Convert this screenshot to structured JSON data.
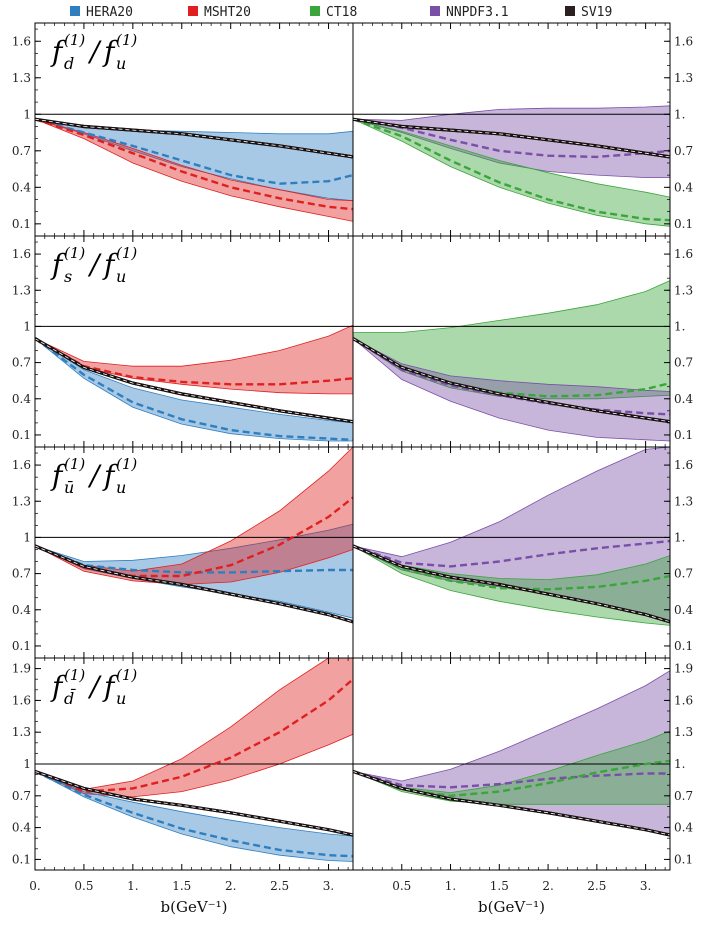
{
  "legend": [
    {
      "name": "HERA20",
      "color": "#2f7fc0"
    },
    {
      "name": "MSHT20",
      "color": "#e02020"
    },
    {
      "name": "CT18",
      "color": "#3aa53a"
    },
    {
      "name": "NNPDF3.1",
      "color": "#7a4fa8"
    },
    {
      "name": "SV19",
      "color": "#2a2020"
    }
  ],
  "x_axis_label": "b(GeV⁻¹)",
  "x_tick_labels": [
    "0.",
    "0.5",
    "1.",
    "1.5",
    "2.",
    "2.5",
    "3."
  ],
  "row_titles": [
    {
      "main": "f",
      "sub": "d",
      "num_sup": "(1)",
      "den": "f",
      "den_sub": "u",
      "den_sup": "(1)"
    },
    {
      "main": "f",
      "sub": "s",
      "num_sup": "(1)",
      "den": "f",
      "den_sub": "u",
      "den_sup": "(1)"
    },
    {
      "main": "f",
      "sub": "ū",
      "num_sup": "(1)",
      "den": "f",
      "den_sub": "u",
      "den_sup": "(1)"
    },
    {
      "main": "f",
      "sub": "d̄",
      "num_sup": "(1)",
      "den": "f",
      "den_sub": "u",
      "den_sup": "(1)"
    }
  ],
  "left_tick_labels": [
    [
      "0.1",
      "0.4",
      "0.7",
      "1",
      "1.3",
      "1.6"
    ],
    [
      "0.1",
      "0.4",
      "0.7",
      "1",
      "1.3",
      "1.6"
    ],
    [
      "0.1",
      "0.4",
      "0.7",
      "1",
      "1.3",
      "1.6"
    ],
    [
      "0.1",
      "0.4",
      "0.7",
      "1",
      "1.3",
      "1.6",
      "1.9"
    ]
  ],
  "right_tick_labels": [
    [
      "0.1",
      "0.4",
      "0.7",
      "1.",
      "1.3",
      "1.6"
    ],
    [
      "0.1",
      "0.4",
      "0.7",
      "1.",
      "1.3",
      "1.6"
    ],
    [
      "0.1",
      "0.4",
      "0.7",
      "1.",
      "1.3",
      "1.6"
    ],
    [
      "0.1",
      "0.4",
      "0.7",
      "1.",
      "1.3",
      "1.6",
      "1.9"
    ]
  ],
  "chart_data": [
    {
      "type": "area",
      "row": 0,
      "col": 0,
      "xlim": [
        0,
        3.25
      ],
      "ylim": [
        0,
        1.75
      ],
      "ref_line": 1,
      "x": [
        0,
        0.5,
        1.0,
        1.5,
        2.0,
        2.5,
        3.0,
        3.25
      ],
      "series": [
        {
          "name": "HERA20",
          "color": "#2f7fc0",
          "low": [
            0.96,
            0.84,
            0.7,
            0.57,
            0.47,
            0.38,
            0.31,
            0.29
          ],
          "mid": [
            0.96,
            0.85,
            0.74,
            0.62,
            0.5,
            0.43,
            0.45,
            0.5
          ],
          "high": [
            0.96,
            0.89,
            0.87,
            0.86,
            0.85,
            0.84,
            0.84,
            0.86
          ]
        },
        {
          "name": "MSHT20",
          "color": "#e02020",
          "low": [
            0.96,
            0.8,
            0.6,
            0.45,
            0.33,
            0.24,
            0.16,
            0.12
          ],
          "mid": [
            0.96,
            0.83,
            0.68,
            0.53,
            0.4,
            0.31,
            0.24,
            0.22
          ],
          "high": [
            0.96,
            0.85,
            0.72,
            0.58,
            0.46,
            0.38,
            0.3,
            0.29
          ]
        },
        {
          "name": "SV19",
          "color": "#2a2020",
          "low": [
            0.96,
            0.89,
            0.86,
            0.83,
            0.78,
            0.73,
            0.67,
            0.64
          ],
          "mid": [
            0.96,
            0.9,
            0.87,
            0.84,
            0.79,
            0.74,
            0.68,
            0.65
          ],
          "high": [
            0.96,
            0.91,
            0.88,
            0.85,
            0.8,
            0.75,
            0.69,
            0.66
          ]
        }
      ]
    },
    {
      "type": "area",
      "row": 0,
      "col": 1,
      "xlim": [
        0,
        3.25
      ],
      "ylim": [
        0,
        1.75
      ],
      "ref_line": 1,
      "x": [
        0,
        0.5,
        1.0,
        1.5,
        2.0,
        2.5,
        3.0,
        3.25
      ],
      "series": [
        {
          "name": "NNPDF3.1",
          "color": "#7a4fa8",
          "low": [
            0.96,
            0.85,
            0.72,
            0.6,
            0.53,
            0.5,
            0.48,
            0.48
          ],
          "mid": [
            0.96,
            0.89,
            0.79,
            0.7,
            0.66,
            0.65,
            0.68,
            0.7
          ],
          "high": [
            0.96,
            0.95,
            1.0,
            1.04,
            1.05,
            1.05,
            1.06,
            1.07
          ]
        },
        {
          "name": "CT18",
          "color": "#3aa53a",
          "low": [
            0.96,
            0.78,
            0.57,
            0.4,
            0.27,
            0.17,
            0.1,
            0.08
          ],
          "mid": [
            0.96,
            0.82,
            0.62,
            0.44,
            0.3,
            0.2,
            0.14,
            0.13
          ],
          "high": [
            0.96,
            0.86,
            0.74,
            0.62,
            0.52,
            0.43,
            0.36,
            0.32
          ]
        },
        {
          "name": "SV19",
          "color": "#2a2020",
          "low": [
            0.96,
            0.89,
            0.86,
            0.83,
            0.78,
            0.73,
            0.67,
            0.64
          ],
          "mid": [
            0.96,
            0.9,
            0.87,
            0.84,
            0.79,
            0.74,
            0.68,
            0.65
          ],
          "high": [
            0.96,
            0.91,
            0.88,
            0.85,
            0.8,
            0.75,
            0.69,
            0.66
          ]
        }
      ]
    },
    {
      "type": "area",
      "row": 1,
      "col": 0,
      "xlim": [
        0,
        3.25
      ],
      "ylim": [
        0,
        1.75
      ],
      "ref_line": 1,
      "x": [
        0,
        0.5,
        1.0,
        1.5,
        2.0,
        2.5,
        3.0,
        3.25
      ],
      "series": [
        {
          "name": "MSHT20",
          "color": "#e02020",
          "low": [
            0.9,
            0.66,
            0.57,
            0.52,
            0.48,
            0.45,
            0.44,
            0.44
          ],
          "mid": [
            0.9,
            0.67,
            0.58,
            0.54,
            0.52,
            0.52,
            0.55,
            0.57
          ],
          "high": [
            0.9,
            0.71,
            0.67,
            0.67,
            0.72,
            0.8,
            0.92,
            1.01
          ]
        },
        {
          "name": "HERA20",
          "color": "#2f7fc0",
          "low": [
            0.9,
            0.57,
            0.33,
            0.19,
            0.11,
            0.07,
            0.05,
            0.05
          ],
          "mid": [
            0.9,
            0.6,
            0.37,
            0.23,
            0.14,
            0.09,
            0.07,
            0.06
          ],
          "high": [
            0.9,
            0.64,
            0.49,
            0.39,
            0.33,
            0.27,
            0.22,
            0.2
          ]
        },
        {
          "name": "SV19",
          "color": "#2a2020",
          "low": [
            0.9,
            0.65,
            0.52,
            0.43,
            0.36,
            0.29,
            0.23,
            0.2
          ],
          "mid": [
            0.9,
            0.66,
            0.53,
            0.44,
            0.37,
            0.3,
            0.24,
            0.21
          ],
          "high": [
            0.9,
            0.67,
            0.54,
            0.45,
            0.38,
            0.31,
            0.25,
            0.22
          ]
        }
      ]
    },
    {
      "type": "area",
      "row": 1,
      "col": 1,
      "xlim": [
        0,
        3.25
      ],
      "ylim": [
        0,
        1.75
      ],
      "ref_line": 1,
      "x": [
        0,
        0.5,
        1.0,
        1.5,
        2.0,
        2.5,
        3.0,
        3.25
      ],
      "series": [
        {
          "name": "CT18",
          "color": "#3aa53a",
          "low": [
            0.9,
            0.63,
            0.49,
            0.42,
            0.4,
            0.4,
            0.42,
            0.43
          ],
          "mid": [
            0.9,
            0.66,
            0.52,
            0.45,
            0.42,
            0.43,
            0.48,
            0.53
          ],
          "high": [
            0.95,
            0.95,
            0.99,
            1.05,
            1.11,
            1.18,
            1.29,
            1.38
          ]
        },
        {
          "name": "NNPDF3.1",
          "color": "#7a4fa8",
          "low": [
            0.9,
            0.56,
            0.38,
            0.24,
            0.14,
            0.08,
            0.06,
            0.05
          ],
          "mid": [
            0.9,
            0.64,
            0.51,
            0.43,
            0.36,
            0.31,
            0.28,
            0.27
          ],
          "high": [
            0.9,
            0.69,
            0.59,
            0.55,
            0.52,
            0.5,
            0.47,
            0.46
          ]
        },
        {
          "name": "SV19",
          "color": "#2a2020",
          "low": [
            0.9,
            0.65,
            0.52,
            0.43,
            0.36,
            0.29,
            0.23,
            0.2
          ],
          "mid": [
            0.9,
            0.66,
            0.53,
            0.44,
            0.37,
            0.3,
            0.24,
            0.21
          ],
          "high": [
            0.9,
            0.67,
            0.54,
            0.45,
            0.38,
            0.31,
            0.25,
            0.22
          ]
        }
      ]
    },
    {
      "type": "area",
      "row": 2,
      "col": 0,
      "xlim": [
        0,
        3.25
      ],
      "ylim": [
        0,
        1.75
      ],
      "ref_line": 1,
      "x": [
        0,
        0.5,
        1.0,
        1.5,
        2.0,
        2.5,
        3.0,
        3.25
      ],
      "series": [
        {
          "name": "HERA20",
          "color": "#2f7fc0",
          "low": [
            0.93,
            0.74,
            0.66,
            0.59,
            0.53,
            0.47,
            0.38,
            0.33
          ],
          "mid": [
            0.93,
            0.77,
            0.73,
            0.71,
            0.71,
            0.72,
            0.73,
            0.73
          ],
          "high": [
            0.93,
            0.8,
            0.81,
            0.85,
            0.91,
            0.98,
            1.06,
            1.11
          ]
        },
        {
          "name": "MSHT20",
          "color": "#e02020",
          "low": [
            0.93,
            0.72,
            0.64,
            0.61,
            0.63,
            0.71,
            0.83,
            0.9
          ],
          "mid": [
            0.93,
            0.75,
            0.68,
            0.68,
            0.77,
            0.94,
            1.17,
            1.33
          ],
          "high": [
            0.93,
            0.77,
            0.72,
            0.78,
            0.97,
            1.22,
            1.55,
            1.75
          ]
        },
        {
          "name": "SV19",
          "color": "#2a2020",
          "low": [
            0.93,
            0.75,
            0.66,
            0.6,
            0.52,
            0.44,
            0.35,
            0.29
          ],
          "mid": [
            0.93,
            0.76,
            0.67,
            0.61,
            0.53,
            0.45,
            0.36,
            0.3
          ],
          "high": [
            0.93,
            0.77,
            0.68,
            0.62,
            0.54,
            0.46,
            0.37,
            0.31
          ]
        }
      ]
    },
    {
      "type": "area",
      "row": 2,
      "col": 1,
      "xlim": [
        0,
        3.25
      ],
      "ylim": [
        0,
        1.75
      ],
      "ref_line": 1,
      "x": [
        0,
        0.5,
        1.0,
        1.5,
        2.0,
        2.5,
        3.0,
        3.25
      ],
      "series": [
        {
          "name": "NNPDF3.1",
          "color": "#7a4fa8",
          "low": [
            0.93,
            0.73,
            0.64,
            0.59,
            0.53,
            0.45,
            0.36,
            0.3
          ],
          "mid": [
            0.93,
            0.79,
            0.76,
            0.8,
            0.86,
            0.91,
            0.95,
            0.97
          ],
          "high": [
            0.93,
            0.84,
            0.96,
            1.13,
            1.35,
            1.55,
            1.73,
            1.75
          ]
        },
        {
          "name": "CT18",
          "color": "#3aa53a",
          "low": [
            0.93,
            0.7,
            0.56,
            0.47,
            0.4,
            0.34,
            0.29,
            0.27
          ],
          "mid": [
            0.93,
            0.74,
            0.64,
            0.58,
            0.57,
            0.59,
            0.64,
            0.68
          ],
          "high": [
            0.93,
            0.77,
            0.7,
            0.66,
            0.65,
            0.69,
            0.78,
            0.85
          ]
        },
        {
          "name": "SV19",
          "color": "#2a2020",
          "low": [
            0.93,
            0.75,
            0.66,
            0.6,
            0.52,
            0.44,
            0.35,
            0.29
          ],
          "mid": [
            0.93,
            0.76,
            0.67,
            0.61,
            0.53,
            0.45,
            0.36,
            0.3
          ],
          "high": [
            0.93,
            0.77,
            0.68,
            0.62,
            0.54,
            0.46,
            0.37,
            0.31
          ]
        }
      ]
    },
    {
      "type": "area",
      "row": 3,
      "col": 0,
      "xlim": [
        0,
        3.25
      ],
      "ylim": [
        0,
        2.0
      ],
      "ref_line": 1,
      "x": [
        0,
        0.5,
        1.0,
        1.5,
        2.0,
        2.5,
        3.0,
        3.25
      ],
      "series": [
        {
          "name": "MSHT20",
          "color": "#e02020",
          "low": [
            0.93,
            0.72,
            0.69,
            0.74,
            0.85,
            1.0,
            1.18,
            1.28
          ],
          "mid": [
            0.93,
            0.74,
            0.77,
            0.88,
            1.06,
            1.3,
            1.6,
            1.8
          ],
          "high": [
            0.93,
            0.76,
            0.84,
            1.05,
            1.35,
            1.7,
            2.0,
            2.0
          ]
        },
        {
          "name": "HERA20",
          "color": "#2f7fc0",
          "low": [
            0.93,
            0.69,
            0.5,
            0.34,
            0.22,
            0.14,
            0.09,
            0.08
          ],
          "mid": [
            0.93,
            0.71,
            0.54,
            0.39,
            0.28,
            0.19,
            0.14,
            0.13
          ],
          "high": [
            0.93,
            0.74,
            0.64,
            0.55,
            0.47,
            0.4,
            0.34,
            0.32
          ]
        },
        {
          "name": "SV19",
          "color": "#2a2020",
          "low": [
            0.93,
            0.76,
            0.66,
            0.6,
            0.53,
            0.45,
            0.37,
            0.32
          ],
          "mid": [
            0.93,
            0.77,
            0.67,
            0.61,
            0.54,
            0.46,
            0.38,
            0.33
          ],
          "high": [
            0.93,
            0.78,
            0.68,
            0.62,
            0.55,
            0.47,
            0.39,
            0.34
          ]
        }
      ]
    },
    {
      "type": "area",
      "row": 3,
      "col": 1,
      "xlim": [
        0,
        3.25
      ],
      "ylim": [
        0,
        2.0
      ],
      "ref_line": 1,
      "x": [
        0,
        0.5,
        1.0,
        1.5,
        2.0,
        2.5,
        3.0,
        3.25
      ],
      "series": [
        {
          "name": "NNPDF3.1",
          "color": "#7a4fa8",
          "low": [
            0.93,
            0.76,
            0.66,
            0.6,
            0.53,
            0.46,
            0.38,
            0.34
          ],
          "mid": [
            0.93,
            0.8,
            0.78,
            0.81,
            0.86,
            0.89,
            0.91,
            0.91
          ],
          "high": [
            0.93,
            0.84,
            0.95,
            1.12,
            1.32,
            1.52,
            1.74,
            1.88
          ]
        },
        {
          "name": "CT18",
          "color": "#3aa53a",
          "low": [
            0.93,
            0.74,
            0.65,
            0.62,
            0.62,
            0.62,
            0.62,
            0.62
          ],
          "mid": [
            0.93,
            0.76,
            0.7,
            0.74,
            0.82,
            0.92,
            1.0,
            1.03
          ],
          "high": [
            0.93,
            0.78,
            0.73,
            0.8,
            0.93,
            1.08,
            1.22,
            1.31
          ]
        },
        {
          "name": "SV19",
          "color": "#2a2020",
          "low": [
            0.93,
            0.76,
            0.66,
            0.6,
            0.53,
            0.45,
            0.37,
            0.32
          ],
          "mid": [
            0.93,
            0.77,
            0.67,
            0.61,
            0.54,
            0.46,
            0.38,
            0.33
          ],
          "high": [
            0.93,
            0.78,
            0.68,
            0.62,
            0.55,
            0.47,
            0.39,
            0.34
          ]
        }
      ]
    }
  ]
}
